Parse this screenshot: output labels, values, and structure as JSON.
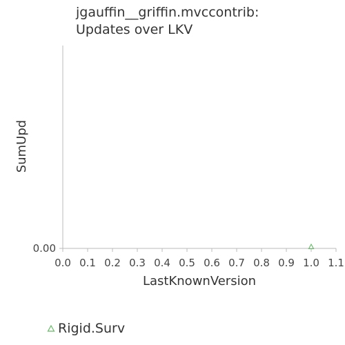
{
  "chart_data": {
    "type": "scatter",
    "title_lines": [
      "jgauffin__griffin.mvccontrib:",
      "Updates over LKV"
    ],
    "xlabel": "LastKnownVersion",
    "ylabel": "SumUpd",
    "xlim": [
      0.0,
      1.1
    ],
    "x_ticks": [
      "0.0",
      "0.1",
      "0.2",
      "0.3",
      "0.4",
      "0.5",
      "0.6",
      "0.7",
      "0.8",
      "0.9",
      "1.0",
      "1.1"
    ],
    "y_ticks": [
      "0.00"
    ],
    "y_tick_values": [
      0.0
    ],
    "grid": false,
    "legend_position": "bottom-left",
    "series": [
      {
        "name": "Rigid.Surv",
        "marker": "triangle",
        "color": "#66bb66",
        "points": [
          {
            "x": 1.0,
            "y": 0.0
          }
        ]
      }
    ]
  }
}
